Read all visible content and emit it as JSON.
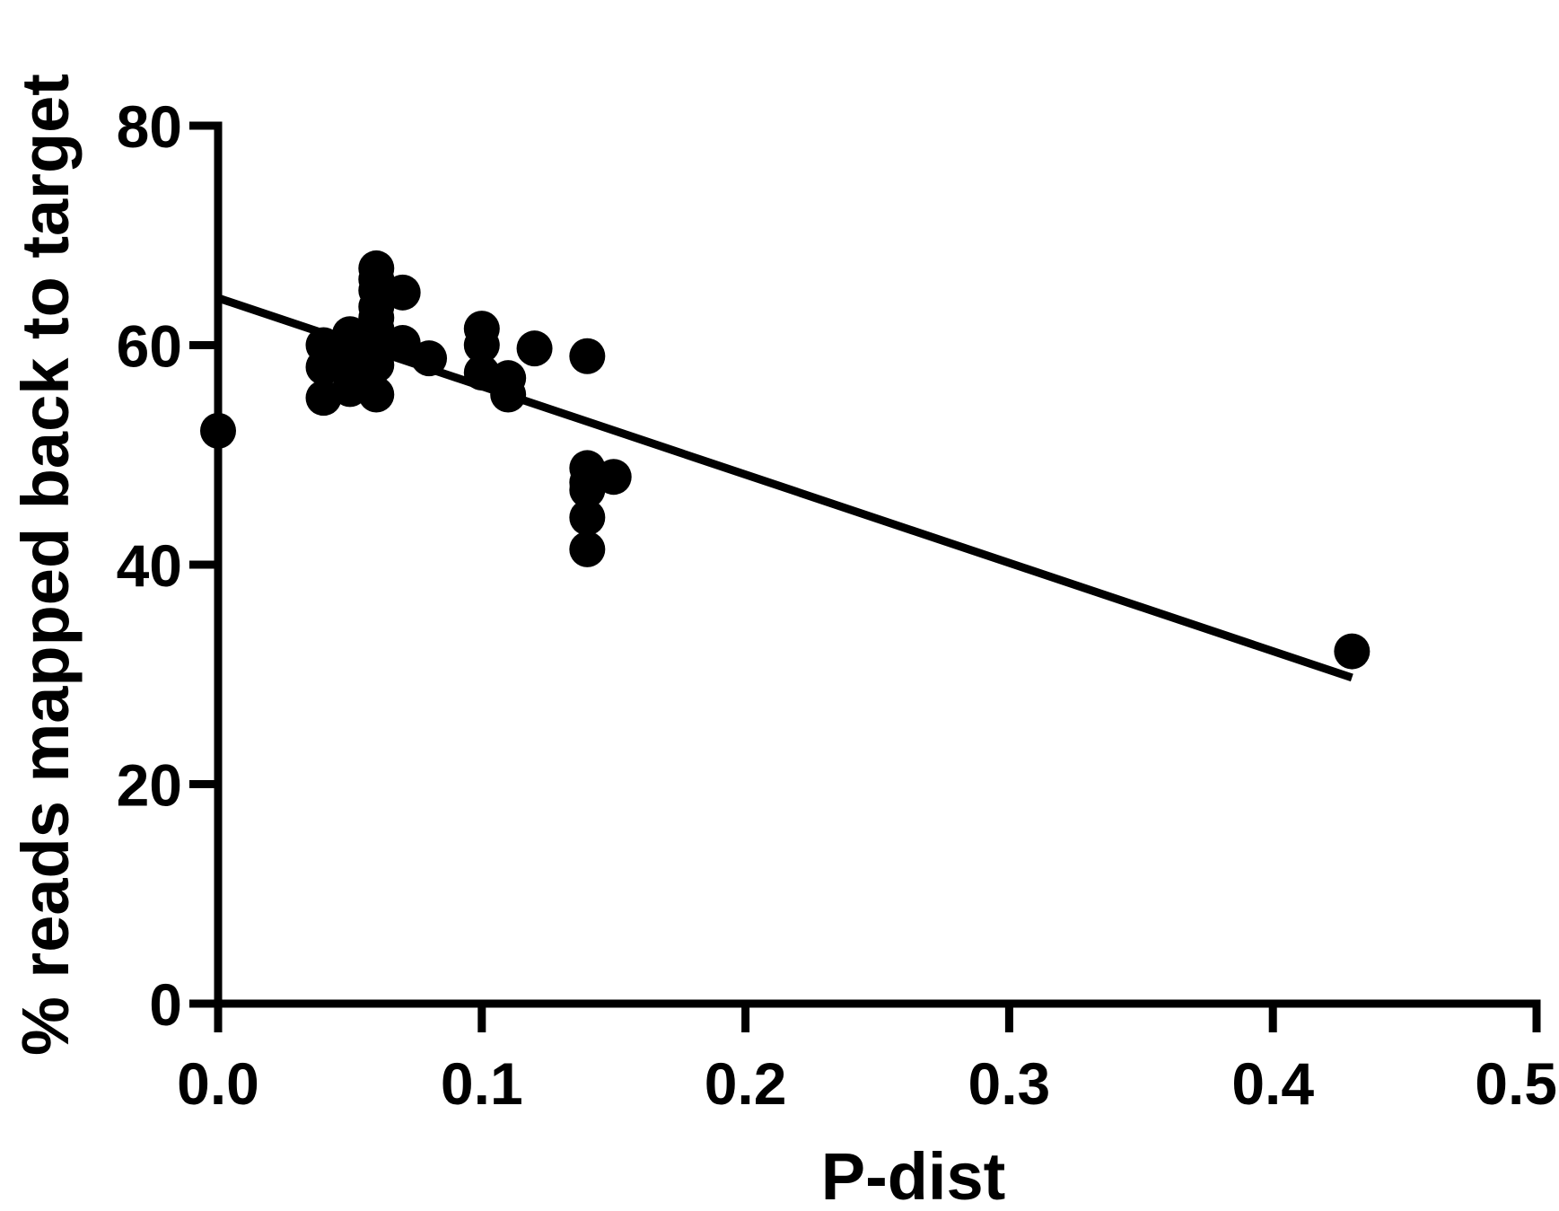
{
  "chart_data": {
    "type": "scatter",
    "title": "",
    "xlabel": "P-dist",
    "ylabel": "% reads mapped back to target",
    "xlim": [
      0,
      0.5
    ],
    "ylim": [
      0,
      80
    ],
    "xticks": [
      0.0,
      0.1,
      0.2,
      0.3,
      0.4,
      0.5
    ],
    "xtick_labels": [
      "0.0",
      "0.1",
      "0.2",
      "0.3",
      "0.4",
      "0.5"
    ],
    "yticks": [
      0,
      20,
      40,
      60,
      80
    ],
    "ytick_labels": [
      "0",
      "20",
      "40",
      "60",
      "80"
    ],
    "grid": false,
    "legend": "none",
    "points": [
      {
        "x": 0.0,
        "y": 52.2
      },
      {
        "x": 0.04,
        "y": 60.0
      },
      {
        "x": 0.04,
        "y": 58.0
      },
      {
        "x": 0.04,
        "y": 55.2
      },
      {
        "x": 0.045,
        "y": 59.0
      },
      {
        "x": 0.05,
        "y": 61.0
      },
      {
        "x": 0.05,
        "y": 57.5
      },
      {
        "x": 0.05,
        "y": 56.0
      },
      {
        "x": 0.055,
        "y": 60.5
      },
      {
        "x": 0.055,
        "y": 59.5
      },
      {
        "x": 0.055,
        "y": 58.5
      },
      {
        "x": 0.06,
        "y": 67.0
      },
      {
        "x": 0.06,
        "y": 66.0
      },
      {
        "x": 0.06,
        "y": 65.0
      },
      {
        "x": 0.06,
        "y": 63.5
      },
      {
        "x": 0.06,
        "y": 62.5
      },
      {
        "x": 0.06,
        "y": 61.5
      },
      {
        "x": 0.06,
        "y": 60.5
      },
      {
        "x": 0.06,
        "y": 59.5
      },
      {
        "x": 0.06,
        "y": 58.2
      },
      {
        "x": 0.06,
        "y": 55.5
      },
      {
        "x": 0.07,
        "y": 64.8
      },
      {
        "x": 0.07,
        "y": 60.2
      },
      {
        "x": 0.08,
        "y": 58.8
      },
      {
        "x": 0.1,
        "y": 61.5
      },
      {
        "x": 0.1,
        "y": 60.0
      },
      {
        "x": 0.1,
        "y": 57.5
      },
      {
        "x": 0.11,
        "y": 57.0
      },
      {
        "x": 0.11,
        "y": 55.5
      },
      {
        "x": 0.12,
        "y": 59.7
      },
      {
        "x": 0.14,
        "y": 59.0
      },
      {
        "x": 0.14,
        "y": 48.8
      },
      {
        "x": 0.14,
        "y": 47.5
      },
      {
        "x": 0.14,
        "y": 46.8
      },
      {
        "x": 0.14,
        "y": 44.3
      },
      {
        "x": 0.14,
        "y": 41.4
      },
      {
        "x": 0.15,
        "y": 48.0
      },
      {
        "x": 0.43,
        "y": 32.1
      }
    ],
    "fit_line": {
      "x": [
        0.0,
        0.43
      ],
      "y": [
        64.3,
        29.7
      ]
    }
  }
}
